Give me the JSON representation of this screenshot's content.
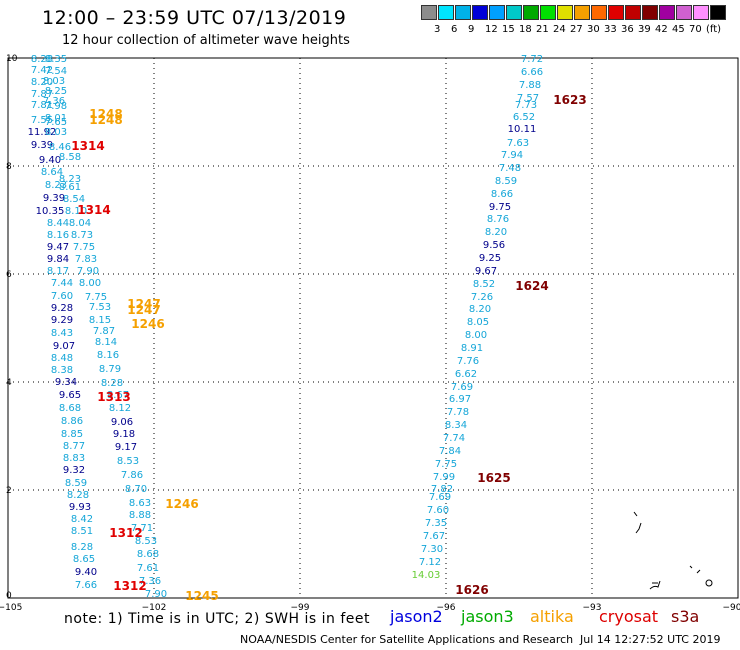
{
  "title": "12:00 – 23:59 UTC 07/13/2019",
  "subtitle": "12 hour collection of altimeter wave heights",
  "scale": {
    "colors": [
      "#8c8c8c",
      "#00e5ff",
      "#00b2e8",
      "#0000d8",
      "#00a0ff",
      "#00c8c8",
      "#00aa00",
      "#00e000",
      "#e0e000",
      "#f5a000",
      "#ff6800",
      "#e00000",
      "#c00000",
      "#800000",
      "#a000a0",
      "#d060d0",
      "#ff90ff",
      "#000000"
    ],
    "labels": [
      "3",
      "6",
      "9",
      "12",
      "15",
      "18",
      "21",
      "24",
      "27",
      "30",
      "33",
      "36",
      "39",
      "42",
      "45",
      "70",
      "(ft)"
    ]
  },
  "axes": {
    "x_ticks": [
      "−105",
      "−102",
      "−99",
      "−96",
      "−93",
      "−90"
    ],
    "y_ticks": [
      "0",
      "2",
      "4",
      "6",
      "8",
      "10"
    ]
  },
  "swh_values": [
    "8.28",
    "8.35",
    "7.42",
    "7.54",
    "8.03",
    "8.20",
    "8.25",
    "7.87",
    "7.36",
    "7.81",
    "7.98",
    "7.55",
    "7.65",
    "8.01",
    "11.92",
    "8.03",
    "9.39",
    "8.46",
    "9.40",
    "8.58",
    "8.64",
    "8.23",
    "8.23",
    "8.61",
    "9.39",
    "8.54",
    "10.35",
    "8.10",
    "8.44",
    "8.04",
    "8.16",
    "8.73",
    "9.47",
    "7.75",
    "9.84",
    "7.83",
    "8.17",
    "7.90",
    "7.44",
    "8.00",
    "7.60",
    "7.75",
    "9.28",
    "7.53",
    "9.29",
    "8.15",
    "8.43",
    "7.87",
    "9.07",
    "8.14",
    "8.48",
    "8.16",
    "8.38",
    "8.79",
    "9.34",
    "8.28",
    "9.65",
    "8.67",
    "8.68",
    "8.12",
    "8.86",
    "9.06",
    "8.85",
    "9.18",
    "8.77",
    "9.17",
    "8.83",
    "8.53",
    "9.32",
    "7.86",
    "8.59",
    "8.70",
    "8.28",
    "8.63",
    "9.93",
    "8.88",
    "8.42",
    "7.71",
    "8.51",
    "8.53",
    "8.28",
    "8.68",
    "8.65",
    "7.61",
    "9.40",
    "7.36",
    "7.66",
    "7.90",
    "7.72",
    "6.66",
    "7.88",
    "7.57",
    "7.73",
    "6.52",
    "10.11",
    "7.63",
    "7.94",
    "7.48",
    "8.59",
    "8.66",
    "9.75",
    "8.76",
    "8.20",
    "9.56",
    "9.25",
    "9.67",
    "8.52",
    "7.26",
    "8.20",
    "8.05",
    "8.00",
    "8.91",
    "7.76",
    "6.62",
    "7.69",
    "6.97",
    "7.78",
    "8.34",
    "7.74",
    "7.84",
    "7.75",
    "7.99",
    "7.82",
    "7.69",
    "7.60",
    "7.35",
    "7.67",
    "7.30",
    "7.12",
    "14.03"
  ],
  "time_tags": [
    "1248",
    "1248",
    "1314",
    "1314",
    "1247",
    "1247",
    "1246",
    "1313",
    "1246",
    "1312",
    "1312",
    "1245",
    "1623",
    "1624",
    "1625",
    "1626"
  ],
  "note": "note: 1) Time is in UTC; 2) SWH is in feet",
  "satellites": [
    {
      "name": "jason2",
      "color": "#0000dd"
    },
    {
      "name": "jason3",
      "color": "#00aa00"
    },
    {
      "name": "altika",
      "color": "#f5a000"
    },
    {
      "name": "cryosat",
      "color": "#dd0000"
    },
    {
      "name": "s3a",
      "color": "#800000"
    }
  ],
  "credit": "NOAA/NESDIS Center for Satellite Applications and Research",
  "timestamp": "Jul 14 12:27:52 UTC 2019"
}
